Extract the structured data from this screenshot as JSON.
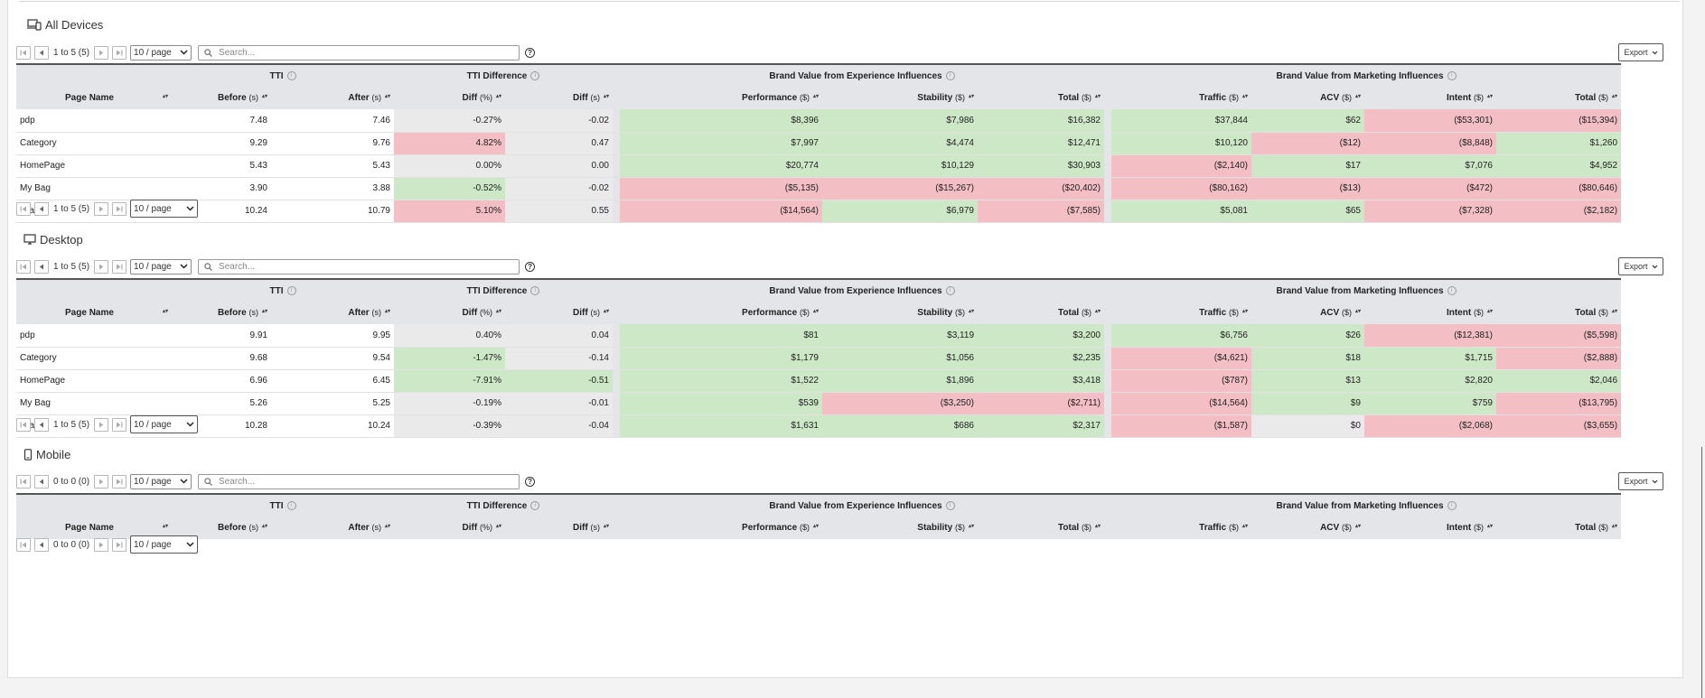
{
  "page_size_options_label": "10 / page",
  "search_placeholder": "Search...",
  "export_label": "Export",
  "headers": {
    "groups": {
      "tti": "TTI",
      "tti_diff": "TTI Difference",
      "exp": "Brand Value from Experience Influences",
      "mkt": "Brand Value from Marketing Influences"
    },
    "cols": {
      "page_name": "Page Name",
      "before": "Before",
      "after": "After",
      "diff_pct": "Diff",
      "diff_s": "Diff",
      "performance": "Performance",
      "stability": "Stability",
      "total_exp": "Total",
      "traffic": "Traffic",
      "acv": "ACV",
      "intent": "Intent",
      "total_mkt": "Total"
    },
    "units": {
      "s": "(s)",
      "pct": "(%)",
      "usd": "($)"
    }
  },
  "sections": [
    {
      "title": "All Devices",
      "icon": "devices-icon",
      "range": "1 to 5 (5)",
      "rows": [
        [
          "pdp",
          "7.48",
          "7.46",
          "-0.27%",
          "-0.02",
          "$8,396",
          "$7,986",
          "$16,382",
          "$37,844",
          "$62",
          "($53,301)",
          "($15,394)"
        ],
        [
          "Category",
          "9.29",
          "9.76",
          "4.82%",
          "0.47",
          "$7,997",
          "$4,474",
          "$12,471",
          "$10,120",
          "($12)",
          "($8,848)",
          "$1,260"
        ],
        [
          "HomePage",
          "5.43",
          "5.43",
          "0.00%",
          "0.00",
          "$20,774",
          "$10,129",
          "$30,903",
          "($2,140)",
          "$17",
          "$7,076",
          "$4,952"
        ],
        [
          "My Bag",
          "3.90",
          "3.88",
          "-0.52%",
          "-0.02",
          "($5,135)",
          "($15,267)",
          "($20,402)",
          "($80,162)",
          "($13)",
          "($472)",
          "($80,646)"
        ],
        [
          "search",
          "10.24",
          "10.79",
          "5.10%",
          "0.55",
          "($14,564)",
          "$6,979",
          "($7,585)",
          "$5,081",
          "$65",
          "($7,328)",
          "($2,182)"
        ]
      ],
      "colors": [
        [
          "",
          "",
          "",
          "n",
          "n",
          "g",
          "g",
          "g",
          "g",
          "g",
          "r",
          "r"
        ],
        [
          "",
          "",
          "",
          "r",
          "n",
          "g",
          "g",
          "g",
          "g",
          "r",
          "r",
          "g"
        ],
        [
          "",
          "",
          "",
          "n",
          "n",
          "g",
          "g",
          "g",
          "r",
          "g",
          "g",
          "g"
        ],
        [
          "",
          "",
          "",
          "g",
          "n",
          "r",
          "r",
          "r",
          "r",
          "r",
          "r",
          "r"
        ],
        [
          "",
          "",
          "",
          "r",
          "n",
          "r",
          "g",
          "r",
          "g",
          "g",
          "r",
          "r"
        ]
      ]
    },
    {
      "title": "Desktop",
      "icon": "desktop-icon",
      "range": "1 to 5 (5)",
      "rows": [
        [
          "pdp",
          "9.91",
          "9.95",
          "0.40%",
          "0.04",
          "$81",
          "$3,119",
          "$3,200",
          "$6,756",
          "$26",
          "($12,381)",
          "($5,598)"
        ],
        [
          "Category",
          "9.68",
          "9.54",
          "-1.47%",
          "-0.14",
          "$1,179",
          "$1,056",
          "$2,235",
          "($4,621)",
          "$18",
          "$1,715",
          "($2,888)"
        ],
        [
          "HomePage",
          "6.96",
          "6.45",
          "-7.91%",
          "-0.51",
          "$1,522",
          "$1,896",
          "$3,418",
          "($787)",
          "$13",
          "$2,820",
          "$2,046"
        ],
        [
          "My Bag",
          "5.26",
          "5.25",
          "-0.19%",
          "-0.01",
          "$539",
          "($3,250)",
          "($2,711)",
          "($14,564)",
          "$9",
          "$759",
          "($13,795)"
        ],
        [
          "search",
          "10.28",
          "10.24",
          "-0.39%",
          "-0.04",
          "$1,631",
          "$686",
          "$2,317",
          "($1,587)",
          "$0",
          "($2,068)",
          "($3,655)"
        ]
      ],
      "colors": [
        [
          "",
          "",
          "",
          "n",
          "n",
          "g",
          "g",
          "g",
          "g",
          "g",
          "r",
          "r"
        ],
        [
          "",
          "",
          "",
          "g",
          "n",
          "g",
          "g",
          "g",
          "r",
          "g",
          "g",
          "r"
        ],
        [
          "",
          "",
          "",
          "g",
          "g",
          "g",
          "g",
          "g",
          "r",
          "g",
          "g",
          "g"
        ],
        [
          "",
          "",
          "",
          "n",
          "n",
          "g",
          "r",
          "r",
          "r",
          "g",
          "g",
          "r"
        ],
        [
          "",
          "",
          "",
          "n",
          "n",
          "g",
          "g",
          "g",
          "r",
          "n",
          "r",
          "r"
        ]
      ]
    },
    {
      "title": "Mobile",
      "icon": "mobile-icon",
      "range": "0 to 0 (0)",
      "rows": [],
      "colors": []
    }
  ],
  "colors": {
    "green": "#cde8c6",
    "red": "#f3bfc4",
    "neutral": "#eaeaea",
    "header": "#e4e5e8"
  }
}
